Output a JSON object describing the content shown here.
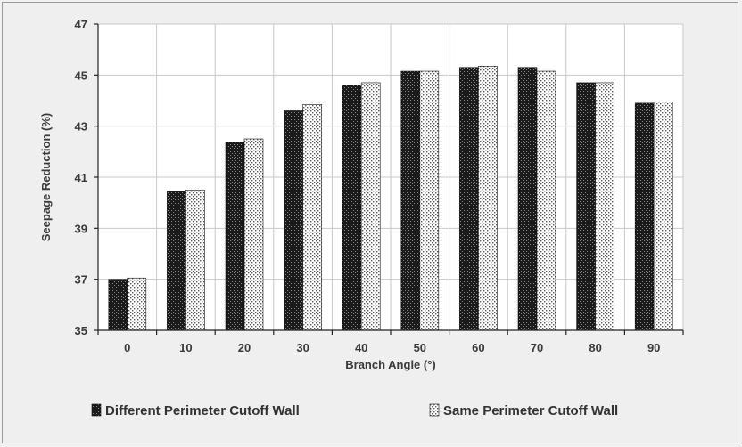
{
  "chart_data": {
    "type": "bar",
    "xlabel": "Branch Angle (°)",
    "ylabel": "Seepage Reduction (%)",
    "ylim": [
      35,
      47
    ],
    "yticks": [
      35,
      37,
      39,
      41,
      43,
      45,
      47
    ],
    "categories": [
      "0",
      "10",
      "20",
      "30",
      "40",
      "50",
      "60",
      "70",
      "80",
      "90"
    ],
    "grid": "vertical and horizontal",
    "legend_position": "bottom",
    "series": [
      {
        "name": "Different Perimeter Cutoff Wall",
        "pattern": "dark-dotted",
        "color": "#1c1c1c",
        "values": [
          37.0,
          40.45,
          42.35,
          43.6,
          44.6,
          45.15,
          45.3,
          45.3,
          44.7,
          43.9
        ]
      },
      {
        "name": "Same Perimeter Cutoff Wall",
        "pattern": "light-dotted",
        "color": "#ffffff",
        "values": [
          37.05,
          40.5,
          42.5,
          43.85,
          44.7,
          45.15,
          45.35,
          45.15,
          44.7,
          43.95
        ]
      }
    ]
  }
}
